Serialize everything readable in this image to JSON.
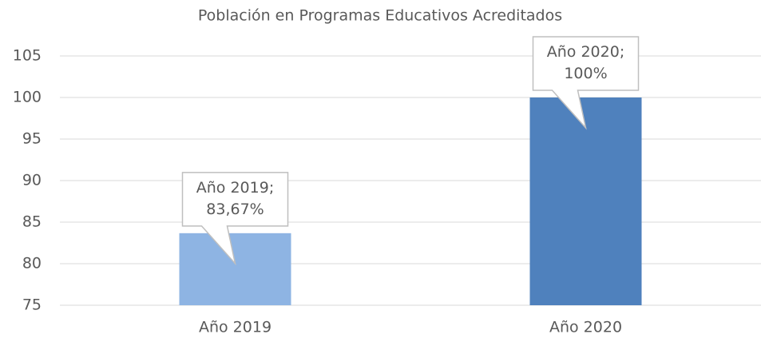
{
  "chart_data": {
    "type": "bar",
    "title": "Población en Programas Educativos Acreditados",
    "categories": [
      "Año 2019",
      "Año 2020"
    ],
    "values": [
      83.67,
      100
    ],
    "value_labels": [
      "Año 2019; 83,67%",
      "Año 2020; 100%"
    ],
    "colors": [
      "#8eb4e3",
      "#4f81bd"
    ],
    "ylim": [
      75,
      105
    ],
    "yticks": [
      75,
      80,
      85,
      90,
      95,
      100,
      105
    ],
    "grid": true
  }
}
